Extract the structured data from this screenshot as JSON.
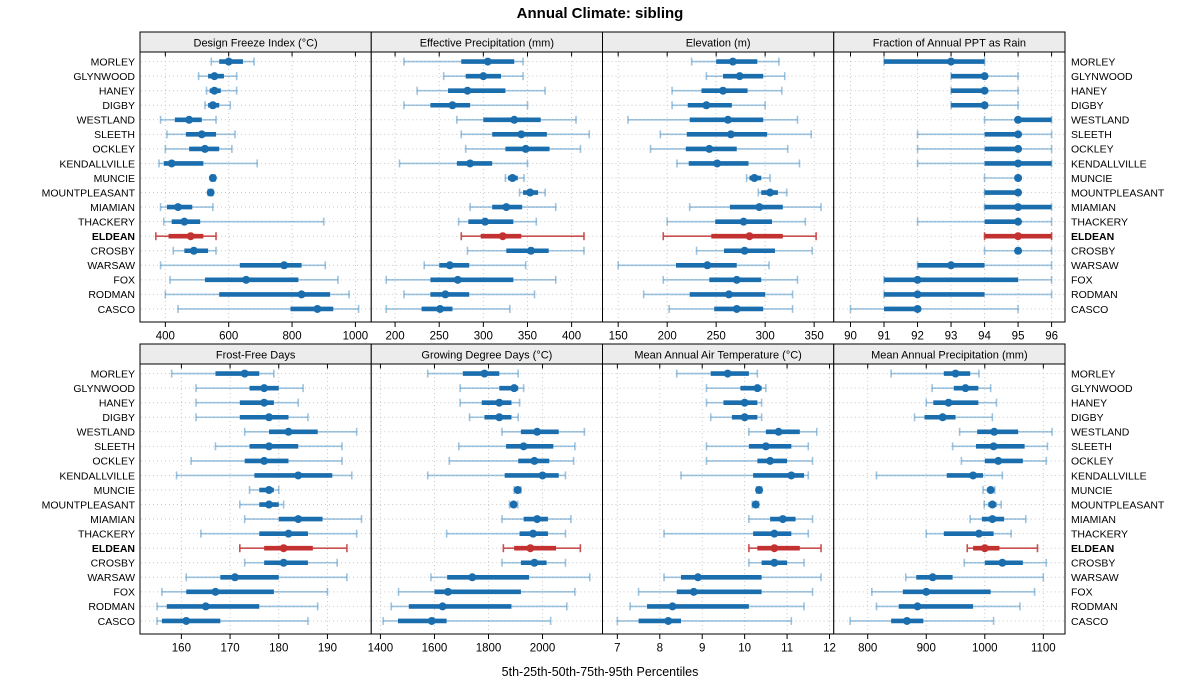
{
  "title": "Annual Climate: sibling",
  "caption": "5th-25th-50th-75th-95th Percentiles",
  "sites": [
    "MORLEY",
    "GLYNWOOD",
    "HANEY",
    "DIGBY",
    "WESTLAND",
    "SLEETH",
    "OCKLEY",
    "KENDALLVILLE",
    "MUNCIE",
    "MOUNTPLEASANT",
    "MIAMIAN",
    "THACKERY",
    "ELDEAN",
    "CROSBY",
    "WARSAW",
    "FOX",
    "RODMAN",
    "CASCO"
  ],
  "highlight_site": "ELDEAN",
  "colors": {
    "series": "#1b6eae",
    "series_whisker": "#4e93c4",
    "highlight": "#c43131",
    "highlight_whisker": "#c94747",
    "strip_bg": "#ececec",
    "grid": "#c9c9c9",
    "border": "#000000",
    "text": "#000000"
  },
  "chart_data": {
    "type": "dot-interval",
    "percentiles": [
      "5th",
      "25th",
      "50th",
      "75th",
      "95th"
    ],
    "grid": "dotted",
    "legend_position": "none",
    "layout": {
      "rows": 2,
      "cols": 4
    },
    "panels": [
      {
        "title": "Design Freeze Index (°C)",
        "row": 0,
        "col": 0,
        "xlim": [
          320,
          1050
        ],
        "ticks": [
          400,
          600,
          800,
          1000
        ],
        "values": [
          [
            545,
            570,
            600,
            645,
            680
          ],
          [
            505,
            535,
            555,
            585,
            625
          ],
          [
            530,
            540,
            555,
            575,
            625
          ],
          [
            525,
            535,
            550,
            570,
            605
          ],
          [
            385,
            430,
            475,
            515,
            560
          ],
          [
            405,
            465,
            515,
            560,
            620
          ],
          [
            400,
            475,
            525,
            570,
            610
          ],
          [
            380,
            395,
            420,
            520,
            690
          ],
          [
            545,
            548,
            550,
            553,
            557
          ],
          [
            535,
            539,
            543,
            546,
            550
          ],
          [
            385,
            405,
            440,
            485,
            550
          ],
          [
            395,
            420,
            460,
            510,
            900
          ],
          [
            370,
            410,
            480,
            520,
            560
          ],
          [
            425,
            460,
            490,
            535,
            560
          ],
          [
            385,
            635,
            775,
            830,
            905
          ],
          [
            415,
            525,
            655,
            820,
            945
          ],
          [
            400,
            570,
            830,
            920,
            980
          ],
          [
            440,
            795,
            880,
            930,
            1010
          ]
        ]
      },
      {
        "title": "Effective Precipitation (mm)",
        "row": 0,
        "col": 1,
        "xlim": [
          173,
          435
        ],
        "ticks": [
          200,
          250,
          300,
          350,
          400
        ],
        "values": [
          [
            210,
            275,
            305,
            335,
            345
          ],
          [
            255,
            280,
            300,
            320,
            345
          ],
          [
            225,
            260,
            282,
            325,
            370
          ],
          [
            210,
            240,
            265,
            285,
            350
          ],
          [
            270,
            300,
            335,
            365,
            405
          ],
          [
            275,
            310,
            343,
            372,
            420
          ],
          [
            280,
            325,
            348,
            375,
            410
          ],
          [
            205,
            270,
            285,
            310,
            350
          ],
          [
            325,
            328,
            333,
            339,
            346
          ],
          [
            341,
            345,
            353,
            362,
            370
          ],
          [
            285,
            310,
            326,
            344,
            382
          ],
          [
            272,
            283,
            302,
            334,
            360
          ],
          [
            275,
            297,
            322,
            343,
            414
          ],
          [
            282,
            326,
            354,
            374,
            414
          ],
          [
            233,
            250,
            262,
            284,
            348
          ],
          [
            190,
            240,
            271,
            334,
            382
          ],
          [
            210,
            240,
            257,
            284,
            358
          ],
          [
            190,
            230,
            251,
            265,
            330
          ]
        ]
      },
      {
        "title": "Elevation (m)",
        "row": 0,
        "col": 2,
        "xlim": [
          134,
          370
        ],
        "ticks": [
          150,
          200,
          250,
          300,
          350
        ],
        "values": [
          [
            225,
            250,
            267,
            292,
            314
          ],
          [
            240,
            257,
            274,
            298,
            320
          ],
          [
            205,
            235,
            257,
            282,
            317
          ],
          [
            205,
            221,
            240,
            266,
            300
          ],
          [
            160,
            223,
            262,
            298,
            333
          ],
          [
            193,
            220,
            265,
            302,
            347
          ],
          [
            183,
            219,
            243,
            271,
            323
          ],
          [
            210,
            222,
            251,
            283,
            335
          ],
          [
            281,
            284,
            289,
            296,
            305
          ],
          [
            293,
            296,
            305,
            313,
            322
          ],
          [
            223,
            264,
            294,
            318,
            357
          ],
          [
            200,
            249,
            278,
            307,
            341
          ],
          [
            196,
            245,
            284,
            318,
            352
          ],
          [
            230,
            258,
            279,
            310,
            348
          ],
          [
            150,
            209,
            241,
            271,
            304
          ],
          [
            196,
            243,
            271,
            296,
            333
          ],
          [
            176,
            223,
            263,
            300,
            328
          ],
          [
            202,
            248,
            271,
            298,
            328
          ]
        ]
      },
      {
        "title": "Fraction of Annual PPT as Rain",
        "row": 0,
        "col": 3,
        "xlim": [
          89.5,
          96.4
        ],
        "ticks": [
          90,
          91,
          92,
          93,
          94,
          95,
          96
        ],
        "values": [
          [
            91,
            91,
            93,
            94,
            94
          ],
          [
            93,
            93,
            94,
            94,
            95
          ],
          [
            93,
            93,
            94,
            94,
            95
          ],
          [
            93,
            93,
            94,
            94,
            95
          ],
          [
            94,
            95,
            95,
            96,
            96
          ],
          [
            92,
            94,
            95,
            95,
            96
          ],
          [
            92,
            94,
            95,
            95,
            96
          ],
          [
            92,
            94,
            95,
            96,
            96
          ],
          [
            94,
            95,
            95,
            95,
            95
          ],
          [
            94,
            94,
            95,
            95,
            95
          ],
          [
            94,
            94,
            95,
            96,
            96
          ],
          [
            92,
            94,
            95,
            95,
            96
          ],
          [
            94,
            94,
            95,
            96,
            96
          ],
          [
            94,
            95,
            95,
            95,
            96
          ],
          [
            92,
            92,
            93,
            94,
            96
          ],
          [
            91,
            91,
            92,
            95,
            96
          ],
          [
            91,
            91,
            92,
            94,
            96
          ],
          [
            90,
            91,
            92,
            92,
            95
          ]
        ]
      },
      {
        "title": "Frost-Free Days",
        "row": 1,
        "col": 0,
        "xlim": [
          151.5,
          199
        ],
        "ticks": [
          160,
          170,
          180,
          190
        ],
        "values": [
          [
            158,
            167,
            173,
            176,
            179
          ],
          [
            163,
            174,
            177,
            180,
            185
          ],
          [
            163,
            172,
            177,
            179,
            184
          ],
          [
            163,
            172,
            178,
            182,
            186
          ],
          [
            173,
            178,
            182,
            188,
            196
          ],
          [
            167,
            174,
            178,
            184,
            193
          ],
          [
            162,
            173,
            177,
            182,
            193
          ],
          [
            159,
            175,
            184,
            191,
            195
          ],
          [
            174,
            176,
            178,
            179,
            180
          ],
          [
            172,
            176,
            178,
            180,
            181
          ],
          [
            173,
            180,
            184,
            189,
            197
          ],
          [
            164,
            176,
            182,
            186,
            196
          ],
          [
            172,
            177,
            181,
            187,
            194
          ],
          [
            173,
            177,
            181,
            186,
            192
          ],
          [
            161,
            168,
            171,
            180,
            194
          ],
          [
            156,
            161,
            167,
            179,
            190
          ],
          [
            155,
            157,
            165,
            176,
            188
          ],
          [
            155,
            156,
            161,
            168,
            186
          ]
        ]
      },
      {
        "title": "Growing Degree Days (°C)",
        "row": 1,
        "col": 1,
        "xlim": [
          1366,
          2222
        ],
        "ticks": [
          1400,
          1600,
          1800,
          2000
        ],
        "values": [
          [
            1575,
            1705,
            1785,
            1840,
            1910
          ],
          [
            1695,
            1840,
            1895,
            1910,
            1930
          ],
          [
            1695,
            1775,
            1840,
            1885,
            1915
          ],
          [
            1730,
            1785,
            1840,
            1885,
            1910
          ],
          [
            1850,
            1920,
            1980,
            2060,
            2155
          ],
          [
            1690,
            1865,
            1930,
            2040,
            2120
          ],
          [
            1655,
            1910,
            1970,
            2025,
            2115
          ],
          [
            1575,
            1860,
            2000,
            2060,
            2085
          ],
          [
            1895,
            1903,
            1908,
            1914,
            1920
          ],
          [
            1878,
            1887,
            1893,
            1900,
            1908
          ],
          [
            1850,
            1930,
            1980,
            2020,
            2105
          ],
          [
            1645,
            1915,
            1965,
            2020,
            2085
          ],
          [
            1855,
            1895,
            1955,
            2050,
            2140
          ],
          [
            1850,
            1920,
            1970,
            2015,
            2085
          ],
          [
            1587,
            1647,
            1740,
            1950,
            2175
          ],
          [
            1467,
            1600,
            1650,
            1920,
            2120
          ],
          [
            1440,
            1505,
            1630,
            1885,
            2090
          ],
          [
            1410,
            1465,
            1590,
            1645,
            2030
          ]
        ]
      },
      {
        "title": "Mean Annual Air Temperature (°C)",
        "row": 1,
        "col": 2,
        "xlim": [
          6.65,
          12.1
        ],
        "ticks": [
          7,
          8,
          9,
          10,
          11,
          12
        ],
        "values": [
          [
            8.4,
            9.2,
            9.6,
            10.1,
            10.3
          ],
          [
            9.1,
            9.9,
            10.3,
            10.4,
            10.5
          ],
          [
            9.1,
            9.5,
            10.0,
            10.3,
            10.4
          ],
          [
            9.2,
            9.7,
            10.0,
            10.3,
            10.4
          ],
          [
            10.1,
            10.5,
            10.8,
            11.3,
            11.7
          ],
          [
            9.1,
            10.1,
            10.5,
            11.1,
            11.5
          ],
          [
            9.1,
            10.3,
            10.6,
            11.0,
            11.6
          ],
          [
            8.5,
            10.2,
            11.1,
            11.4,
            11.5
          ],
          [
            10.28,
            10.31,
            10.34,
            10.37,
            10.4
          ],
          [
            10.18,
            10.22,
            10.26,
            10.3,
            10.33
          ],
          [
            10.1,
            10.6,
            10.9,
            11.2,
            11.6
          ],
          [
            8.1,
            10.2,
            10.7,
            11.1,
            11.5
          ],
          [
            10.1,
            10.3,
            10.7,
            11.3,
            11.8
          ],
          [
            10.1,
            10.4,
            10.7,
            11.0,
            11.4
          ],
          [
            8.1,
            8.5,
            8.9,
            10.4,
            11.8
          ],
          [
            7.5,
            8.4,
            8.8,
            10.4,
            11.6
          ],
          [
            7.3,
            7.7,
            8.3,
            10.1,
            11.4
          ],
          [
            7.0,
            7.5,
            8.2,
            8.5,
            11.1
          ]
        ]
      },
      {
        "title": "Mean Annual Precipitation (mm)",
        "row": 1,
        "col": 3,
        "xlim": [
          742,
          1137
        ],
        "ticks": [
          800,
          900,
          1000,
          1100
        ],
        "values": [
          [
            840,
            930,
            950,
            975,
            990
          ],
          [
            910,
            947,
            967,
            989,
            1010
          ],
          [
            900,
            912,
            938,
            989,
            1020
          ],
          [
            880,
            897,
            928,
            950,
            1013
          ],
          [
            957,
            987,
            1016,
            1057,
            1115
          ],
          [
            945,
            985,
            1015,
            1068,
            1107
          ],
          [
            960,
            1000,
            1023,
            1065,
            1105
          ],
          [
            815,
            935,
            980,
            997,
            1030
          ],
          [
            997,
            1005,
            1010,
            1014,
            1017
          ],
          [
            999,
            1006,
            1013,
            1020,
            1028
          ],
          [
            975,
            995,
            1013,
            1033,
            1070
          ],
          [
            900,
            930,
            990,
            1015,
            1045
          ],
          [
            970,
            980,
            1000,
            1025,
            1090
          ],
          [
            965,
            1000,
            1030,
            1065,
            1105
          ],
          [
            865,
            883,
            911,
            945,
            1100
          ],
          [
            807,
            860,
            900,
            1010,
            1085
          ],
          [
            815,
            853,
            885,
            980,
            1060
          ],
          [
            770,
            840,
            867,
            895,
            1015
          ]
        ]
      }
    ]
  }
}
